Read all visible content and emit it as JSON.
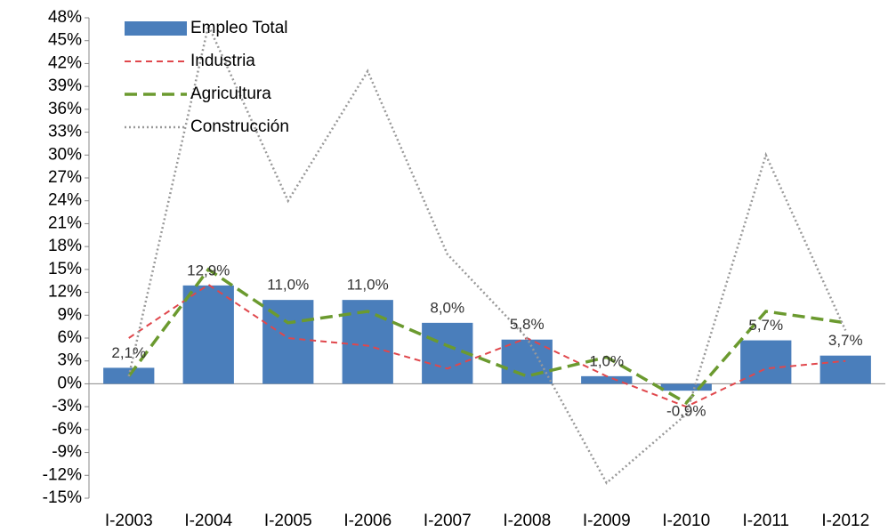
{
  "chart_data": {
    "type": "bar-line",
    "categories": [
      "I-2003",
      "I-2004",
      "I-2005",
      "I-2006",
      "I-2007",
      "I-2008",
      "I-2009",
      "I-2010",
      "I-2011",
      "I-2012"
    ],
    "series": [
      {
        "name": "Empleo Total",
        "kind": "bar",
        "color": "#4a7ebb",
        "values": [
          2.1,
          12.9,
          11.0,
          11.0,
          8.0,
          5.8,
          1.0,
          -0.9,
          5.7,
          3.7
        ],
        "value_labels": [
          "2,1%",
          "12,9%",
          "11,0%",
          "11,0%",
          "8,0%",
          "5,8%",
          "1,0%",
          "-0,9%",
          "5,7%",
          "3,7%"
        ]
      },
      {
        "name": "Industria",
        "kind": "line",
        "dash": "7,5",
        "width": 2,
        "color": "#e0474c",
        "values": [
          6,
          13,
          6,
          5,
          2,
          6,
          1,
          -3,
          2,
          3
        ]
      },
      {
        "name": "Agricultura",
        "kind": "line",
        "dash": "14,7",
        "width": 3.5,
        "color": "#6b9a2f",
        "values": [
          1,
          15,
          8,
          9.5,
          5,
          1,
          3.5,
          -2.5,
          9.5,
          8
        ]
      },
      {
        "name": "Construcción",
        "kind": "line",
        "dash": "2,3",
        "width": 2.5,
        "color": "#999999",
        "values": [
          1,
          47,
          24,
          41,
          17,
          6,
          -13,
          -4,
          30,
          7
        ]
      }
    ],
    "ylim": [
      -15,
      48
    ],
    "yticks": [
      {
        "value": -15,
        "label": "-15%"
      },
      {
        "value": -12,
        "label": "-12%"
      },
      {
        "value": -9,
        "label": "-9%"
      },
      {
        "value": -6,
        "label": "-6%"
      },
      {
        "value": -3,
        "label": "-3%"
      },
      {
        "value": 0,
        "label": "0%"
      },
      {
        "value": 3,
        "label": "3%"
      },
      {
        "value": 6,
        "label": "6%"
      },
      {
        "value": 9,
        "label": "9%"
      },
      {
        "value": 12,
        "label": "12%"
      },
      {
        "value": 15,
        "label": "15%"
      },
      {
        "value": 18,
        "label": "18%"
      },
      {
        "value": 21,
        "label": "21%"
      },
      {
        "value": 24,
        "label": "24%"
      },
      {
        "value": 27,
        "label": "27%"
      },
      {
        "value": 30,
        "label": "30%"
      },
      {
        "value": 33,
        "label": "33%"
      },
      {
        "value": 36,
        "label": "36%"
      },
      {
        "value": 39,
        "label": "39%"
      },
      {
        "value": 42,
        "label": "42%"
      },
      {
        "value": 45,
        "label": "45%"
      },
      {
        "value": 48,
        "label": "48%"
      }
    ]
  }
}
